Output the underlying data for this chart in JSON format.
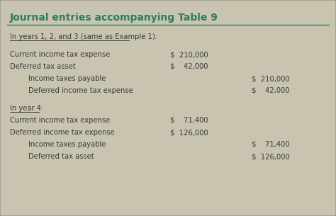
{
  "title": "Journal entries accompanying Table 9",
  "title_color": "#2e7d5e",
  "bg_color": "#c8c4b0",
  "border_color": "#a09d8e",
  "text_color": "#3a3a3a",
  "rows": [
    {
      "indent": 0,
      "text": "In years 1, 2, and 3 (same as Example 1):",
      "debit": "",
      "credit": "",
      "underline": true,
      "section_header": true,
      "extra_before": true
    },
    {
      "indent": 0,
      "text": "Current income tax expense",
      "debit": "$  210,000",
      "credit": "",
      "underline": false,
      "section_header": false,
      "extra_before": true
    },
    {
      "indent": 0,
      "text": "Deferred tax asset",
      "debit": "$    42,000",
      "credit": "",
      "underline": false,
      "section_header": false,
      "extra_before": false
    },
    {
      "indent": 1,
      "text": "Income taxes payable",
      "debit": "",
      "credit": "$  210,000",
      "underline": false,
      "section_header": false,
      "extra_before": false
    },
    {
      "indent": 1,
      "text": "Deferred income tax expense",
      "debit": "",
      "credit": "$    42,000",
      "underline": false,
      "section_header": false,
      "extra_before": false
    },
    {
      "indent": 0,
      "text": "In year 4:",
      "debit": "",
      "credit": "",
      "underline": true,
      "section_header": true,
      "extra_before": true
    },
    {
      "indent": 0,
      "text": "Current income tax expense",
      "debit": "$    71,400",
      "credit": "",
      "underline": false,
      "section_header": false,
      "extra_before": false
    },
    {
      "indent": 0,
      "text": "Deferred income tax expense",
      "debit": "$  126,000",
      "credit": "",
      "underline": false,
      "section_header": false,
      "extra_before": false
    },
    {
      "indent": 1,
      "text": "Income taxes payable",
      "debit": "",
      "credit": "$    71,400",
      "underline": false,
      "section_header": false,
      "extra_before": false
    },
    {
      "indent": 1,
      "text": "Deferred tax asset",
      "debit": "",
      "credit": "$  126,000",
      "underline": false,
      "section_header": false,
      "extra_before": false
    }
  ],
  "figsize": [
    4.74,
    3.05
  ],
  "dpi": 100
}
